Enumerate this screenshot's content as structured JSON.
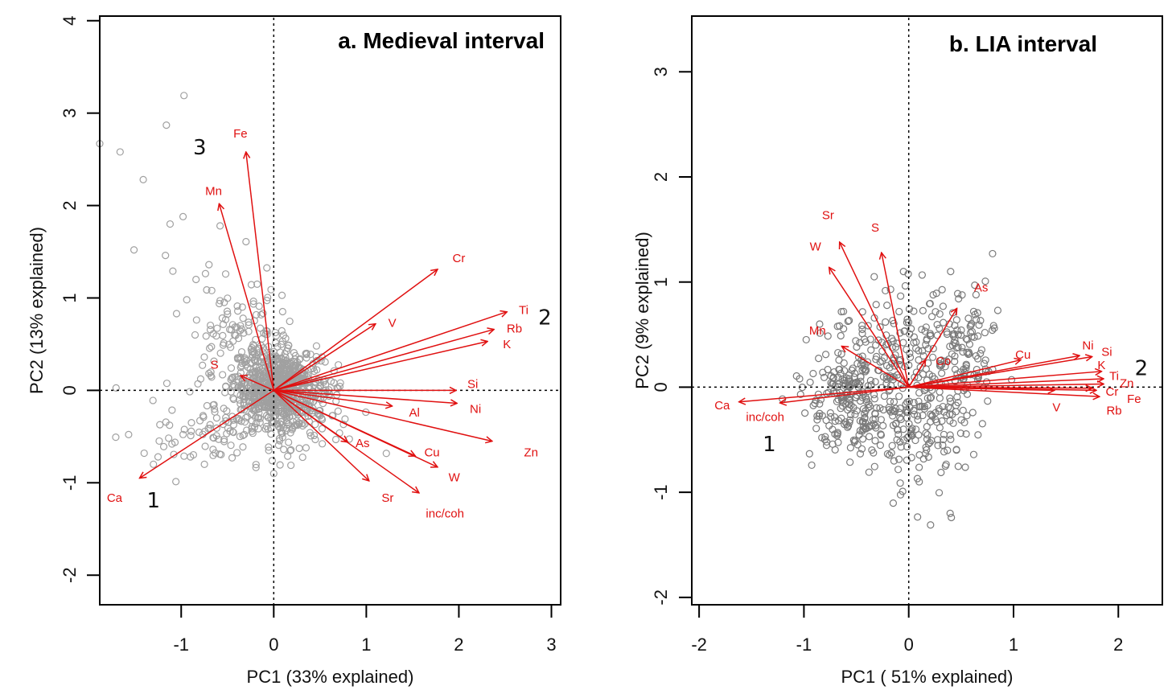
{
  "chart_data": [
    {
      "type": "scatter",
      "subtype": "pca-biplot",
      "title": "a. Medieval interval",
      "xlabel": "PC1  (33% explained)",
      "ylabel": "PC2   (13% explained)",
      "xlim": [
        -1.88,
        3.1
      ],
      "ylim": [
        -2.32,
        4.05
      ],
      "xticks": [
        -1,
        0,
        1,
        2,
        3
      ],
      "yticks": [
        -2,
        -1,
        0,
        1,
        2,
        3,
        4
      ],
      "point_color": "#a0a0a0",
      "arrow_color": "#e01010",
      "reference_lines": {
        "x": 0,
        "y": 0,
        "style": "dotted"
      },
      "loadings": [
        {
          "name": "Fe",
          "x": -0.3,
          "y": 2.58
        },
        {
          "name": "Mn",
          "x": -0.59,
          "y": 2.02
        },
        {
          "name": "Cr",
          "x": 1.77,
          "y": 1.31
        },
        {
          "name": "V",
          "x": 1.1,
          "y": 0.72
        },
        {
          "name": "Ti",
          "x": 2.52,
          "y": 0.85
        },
        {
          "name": "Rb",
          "x": 2.38,
          "y": 0.66
        },
        {
          "name": "K",
          "x": 2.31,
          "y": 0.53
        },
        {
          "name": "Si",
          "x": 1.97,
          "y": 0.0
        },
        {
          "name": "S",
          "x": -0.36,
          "y": 0.16
        },
        {
          "name": "Ca",
          "x": -1.45,
          "y": -0.95
        },
        {
          "name": "Al",
          "x": 1.28,
          "y": -0.17
        },
        {
          "name": "Ni",
          "x": 1.98,
          "y": -0.14
        },
        {
          "name": "Zn",
          "x": 2.36,
          "y": -0.55
        },
        {
          "name": "As",
          "x": 0.8,
          "y": -0.56
        },
        {
          "name": "Cu",
          "x": 1.53,
          "y": -0.71
        },
        {
          "name": "W",
          "x": 1.77,
          "y": -0.83
        },
        {
          "name": "Sr",
          "x": 1.03,
          "y": -0.98
        },
        {
          "name": "inc/coh",
          "x": 1.57,
          "y": -1.11
        }
      ],
      "label_positions": [
        {
          "name": "Fe",
          "x": -0.36,
          "y": 2.77
        },
        {
          "name": "Mn",
          "x": -0.65,
          "y": 2.15
        },
        {
          "name": "Cr",
          "x": 2.0,
          "y": 1.42
        },
        {
          "name": "V",
          "x": 1.28,
          "y": 0.72
        },
        {
          "name": "Ti",
          "x": 2.7,
          "y": 0.86
        },
        {
          "name": "Rb",
          "x": 2.6,
          "y": 0.66
        },
        {
          "name": "K",
          "x": 2.52,
          "y": 0.49
        },
        {
          "name": "Si",
          "x": 2.15,
          "y": 0.06
        },
        {
          "name": "S",
          "x": -0.64,
          "y": 0.27
        },
        {
          "name": "Ca",
          "x": -1.72,
          "y": -1.17
        },
        {
          "name": "Al",
          "x": 1.52,
          "y": -0.25
        },
        {
          "name": "Ni",
          "x": 2.18,
          "y": -0.21
        },
        {
          "name": "Zn",
          "x": 2.78,
          "y": -0.68
        },
        {
          "name": "As",
          "x": 0.96,
          "y": -0.58
        },
        {
          "name": "Cu",
          "x": 1.71,
          "y": -0.68
        },
        {
          "name": "W",
          "x": 1.95,
          "y": -0.95
        },
        {
          "name": "Sr",
          "x": 1.23,
          "y": -1.17
        },
        {
          "name": "inc/coh",
          "x": 1.85,
          "y": -1.34
        }
      ],
      "cluster_labels": [
        {
          "text": "3",
          "x": -0.8,
          "y": 2.62
        },
        {
          "text": "2",
          "x": 2.93,
          "y": 0.78
        },
        {
          "text": "1",
          "x": -1.3,
          "y": -1.2
        }
      ],
      "score_clusters": [
        {
          "cx": 0.05,
          "cy": 0.05,
          "sx": 0.24,
          "sy": 0.2,
          "n": 700
        },
        {
          "cx": -0.3,
          "cy": 0.5,
          "sx": 0.25,
          "sy": 0.35,
          "n": 110
        },
        {
          "cx": -0.6,
          "cy": -0.45,
          "sx": 0.35,
          "sy": 0.18,
          "n": 90
        },
        {
          "cx": 0.2,
          "cy": -0.25,
          "sx": 0.3,
          "sy": 0.25,
          "n": 120
        }
      ],
      "score_outliers": [
        [
          -1.88,
          2.67
        ],
        [
          -1.66,
          2.58
        ],
        [
          -1.41,
          2.28
        ],
        [
          -1.16,
          2.87
        ],
        [
          -0.97,
          3.19
        ],
        [
          -0.58,
          1.78
        ],
        [
          -0.98,
          1.88
        ],
        [
          -1.12,
          1.8
        ],
        [
          -1.51,
          1.52
        ],
        [
          -1.17,
          1.46
        ],
        [
          -0.7,
          1.36
        ],
        [
          -0.84,
          1.2
        ],
        [
          -1.09,
          1.29
        ],
        [
          -0.94,
          0.98
        ],
        [
          -1.05,
          0.83
        ],
        [
          -0.85,
          0.6
        ],
        [
          -0.67,
          1.08
        ],
        [
          -0.58,
          0.97
        ],
        [
          -1.4,
          -0.68
        ],
        [
          -1.25,
          -0.72
        ],
        [
          -1.3,
          -0.8
        ],
        [
          -0.9,
          -0.72
        ],
        [
          0.43,
          -0.12
        ],
        [
          0.58,
          -0.02
        ],
        [
          0.72,
          0.08
        ],
        [
          -0.45,
          -0.73
        ],
        [
          0.0,
          -0.9
        ],
        [
          -1.1,
          -0.58
        ]
      ]
    },
    {
      "type": "scatter",
      "subtype": "pca-biplot",
      "title": "b. LIA interval",
      "xlabel": "PC1 ( 51% explained)",
      "ylabel": "PC2 (9% explained)",
      "xlim": [
        -2.07,
        2.42
      ],
      "ylim": [
        -2.07,
        3.53
      ],
      "xticks": [
        -2,
        -1,
        0,
        1,
        2
      ],
      "yticks": [
        -2,
        -1,
        0,
        1,
        2,
        3
      ],
      "point_color": "#7a7a7a",
      "arrow_color": "#e01010",
      "reference_lines": {
        "x": 0,
        "y": 0,
        "style": "dotted"
      },
      "loadings": [
        {
          "name": "Sr",
          "x": -0.66,
          "y": 1.38
        },
        {
          "name": "S",
          "x": -0.26,
          "y": 1.28
        },
        {
          "name": "W",
          "x": -0.76,
          "y": 1.14
        },
        {
          "name": "Mn",
          "x": -0.64,
          "y": 0.39
        },
        {
          "name": "Co",
          "x": 0.16,
          "y": 0.26
        },
        {
          "name": "As",
          "x": 0.46,
          "y": 0.75
        },
        {
          "name": "Cu",
          "x": 1.07,
          "y": 0.26
        },
        {
          "name": "Ni",
          "x": 1.63,
          "y": 0.3
        },
        {
          "name": "Si",
          "x": 1.75,
          "y": 0.29
        },
        {
          "name": "K",
          "x": 1.84,
          "y": 0.15
        },
        {
          "name": "Ti",
          "x": 1.86,
          "y": 0.08
        },
        {
          "name": "Zn",
          "x": 1.86,
          "y": 0.03
        },
        {
          "name": "Cr",
          "x": 1.75,
          "y": -0.01
        },
        {
          "name": "Fe",
          "x": 1.79,
          "y": -0.03
        },
        {
          "name": "V",
          "x": 1.39,
          "y": -0.03
        },
        {
          "name": "Rb",
          "x": 1.82,
          "y": -0.09
        },
        {
          "name": "Ca",
          "x": -1.62,
          "y": -0.14
        },
        {
          "name": "inc/coh",
          "x": -1.23,
          "y": -0.15
        }
      ],
      "label_positions": [
        {
          "name": "Sr",
          "x": -0.77,
          "y": 1.63
        },
        {
          "name": "S",
          "x": -0.32,
          "y": 1.51
        },
        {
          "name": "W",
          "x": -0.89,
          "y": 1.33
        },
        {
          "name": "Mn",
          "x": -0.87,
          "y": 0.53
        },
        {
          "name": "Co",
          "x": 0.33,
          "y": 0.24
        },
        {
          "name": "As",
          "x": 0.69,
          "y": 0.94
        },
        {
          "name": "Cu",
          "x": 1.09,
          "y": 0.3
        },
        {
          "name": "Ni",
          "x": 1.71,
          "y": 0.39
        },
        {
          "name": "Si",
          "x": 1.89,
          "y": 0.33
        },
        {
          "name": "K",
          "x": 1.84,
          "y": 0.2
        },
        {
          "name": "Ti",
          "x": 1.96,
          "y": 0.1
        },
        {
          "name": "Zn",
          "x": 2.08,
          "y": 0.03
        },
        {
          "name": "Cr",
          "x": 1.94,
          "y": -0.05
        },
        {
          "name": "Fe",
          "x": 2.15,
          "y": -0.12
        },
        {
          "name": "V",
          "x": 1.41,
          "y": -0.2
        },
        {
          "name": "Rb",
          "x": 1.96,
          "y": -0.23
        },
        {
          "name": "Ca",
          "x": -1.78,
          "y": -0.18
        },
        {
          "name": "inc/coh",
          "x": -1.37,
          "y": -0.29
        }
      ],
      "cluster_labels": [
        {
          "text": "2",
          "x": 2.22,
          "y": 0.17
        },
        {
          "text": "1",
          "x": -1.33,
          "y": -0.55
        }
      ],
      "score_clusters": [
        {
          "cx": -0.55,
          "cy": -0.05,
          "sx": 0.25,
          "sy": 0.3,
          "n": 220
        },
        {
          "cx": 0.1,
          "cy": -0.3,
          "sx": 0.28,
          "sy": 0.35,
          "n": 200
        },
        {
          "cx": 0.5,
          "cy": 0.3,
          "sx": 0.18,
          "sy": 0.3,
          "n": 120
        },
        {
          "cx": -0.1,
          "cy": 0.35,
          "sx": 0.25,
          "sy": 0.3,
          "n": 90
        }
      ],
      "score_outliers": [
        [
          0.8,
          1.27
        ],
        [
          0.63,
          0.97
        ],
        [
          0.62,
          0.72
        ],
        [
          -0.05,
          1.1
        ],
        [
          -0.85,
          0.6
        ],
        [
          0.4,
          1.1
        ],
        [
          0.1,
          -0.9
        ],
        [
          0.35,
          -0.75
        ],
        [
          -0.8,
          -0.5
        ],
        [
          0.85,
          0.73
        ]
      ]
    }
  ]
}
